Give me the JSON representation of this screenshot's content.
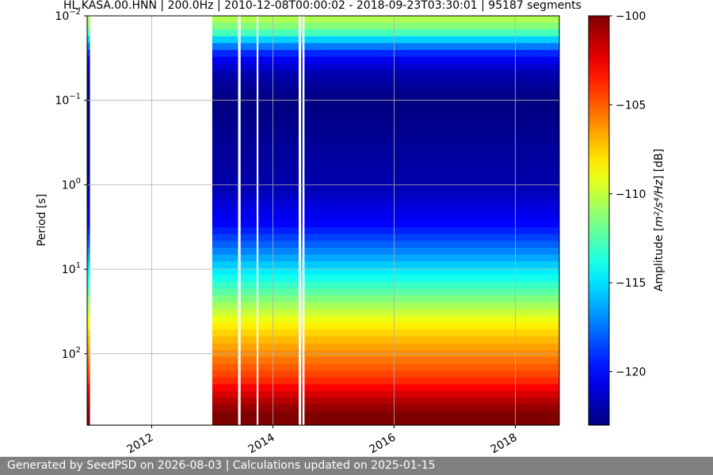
{
  "chart_data": {
    "type": "heatmap",
    "title": "HL.KASA.00.HNN | 200.0Hz | 2010-12-08T00:00:02 - 2018-09-23T03:30:01 | 95187 segments",
    "xlabel": "",
    "ylabel": "Period [s]",
    "x_range": [
      "2010-12-08",
      "2018-09-23"
    ],
    "x_ticks": [
      "2012",
      "2014",
      "2016",
      "2018"
    ],
    "y_scale": "log",
    "y_range": [
      0.01,
      700
    ],
    "y_ticks": [
      {
        "base": "10",
        "exp": "−2"
      },
      {
        "base": "10",
        "exp": "−1"
      },
      {
        "base": "10",
        "exp": "0"
      },
      {
        "base": "10",
        "exp": "1"
      },
      {
        "base": "10",
        "exp": "2"
      }
    ],
    "grid": true,
    "colormap": "jet",
    "colorbar": {
      "label_pre": "Amplitude [",
      "label_math": "m²/s⁴/Hz",
      "label_post": "] [dB]",
      "range": [
        -123,
        -100
      ],
      "ticks": [
        "−100",
        "−105",
        "−110",
        "−115",
        "−120"
      ],
      "tick_values": [
        -100,
        -105,
        -110,
        -115,
        -120
      ]
    },
    "data_gaps": [
      [
        "2010-12-25",
        "2012-12-31"
      ],
      [
        "2013-06-05",
        "2013-06-20"
      ],
      [
        "2013-09-25",
        "2013-10-05"
      ],
      [
        "2014-06-05",
        "2014-06-20"
      ],
      [
        "2014-06-28",
        "2014-07-10"
      ]
    ],
    "level_profile": {
      "period_s": [
        0.01,
        0.015,
        0.02,
        0.03,
        0.05,
        0.1,
        0.3,
        1,
        3,
        5,
        10,
        20,
        50,
        100,
        200,
        300,
        500,
        700
      ],
      "amplitude_db": [
        -110,
        -112,
        -116,
        -120,
        -122,
        -123,
        -122.5,
        -122,
        -120,
        -118,
        -115,
        -112,
        -108,
        -106,
        -104,
        -102,
        -100,
        -100
      ]
    }
  },
  "footer": {
    "text": "Generated by SeedPSD on 2026-08-03 | Calculations updated on 2025-01-15"
  }
}
